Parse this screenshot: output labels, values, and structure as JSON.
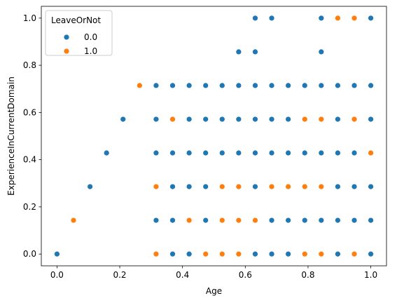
{
  "chart_data": {
    "type": "scatter",
    "title": "",
    "xlabel": "Age",
    "ylabel": "ExperienceInCurrentDomain",
    "xlim": [
      -0.05,
      1.05
    ],
    "ylim": [
      -0.05,
      1.05
    ],
    "xticks": [
      "0.0",
      "0.2",
      "0.4",
      "0.6",
      "0.8",
      "1.0"
    ],
    "yticks": [
      "0.0",
      "0.2",
      "0.4",
      "0.6",
      "0.8",
      "1.0"
    ],
    "grid": false,
    "legend": {
      "title": "LeaveOrNot",
      "placement": "top-left"
    },
    "series": [
      {
        "name": "0.0",
        "color": "#1f77b4",
        "points": [
          [
            0.0,
            0.0
          ],
          [
            0.1053,
            0.2857
          ],
          [
            0.1579,
            0.4286
          ],
          [
            0.2105,
            0.5714
          ],
          [
            0.3158,
            0.1429
          ],
          [
            0.3158,
            0.4286
          ],
          [
            0.3158,
            0.5714
          ],
          [
            0.3158,
            0.7143
          ],
          [
            0.3684,
            0.0
          ],
          [
            0.3684,
            0.1429
          ],
          [
            0.3684,
            0.2857
          ],
          [
            0.3684,
            0.4286
          ],
          [
            0.3684,
            0.7143
          ],
          [
            0.4211,
            0.0
          ],
          [
            0.4211,
            0.2857
          ],
          [
            0.4211,
            0.4286
          ],
          [
            0.4211,
            0.5714
          ],
          [
            0.4211,
            0.7143
          ],
          [
            0.4737,
            0.1429
          ],
          [
            0.4737,
            0.2857
          ],
          [
            0.4737,
            0.4286
          ],
          [
            0.4737,
            0.5714
          ],
          [
            0.4737,
            0.7143
          ],
          [
            0.5263,
            0.4286
          ],
          [
            0.5263,
            0.5714
          ],
          [
            0.5263,
            0.7143
          ],
          [
            0.5789,
            0.4286
          ],
          [
            0.5789,
            0.5714
          ],
          [
            0.5789,
            0.7143
          ],
          [
            0.5789,
            0.8571
          ],
          [
            0.6316,
            0.0
          ],
          [
            0.6316,
            0.2857
          ],
          [
            0.6316,
            0.4286
          ],
          [
            0.6316,
            0.5714
          ],
          [
            0.6316,
            0.7143
          ],
          [
            0.6316,
            0.8571
          ],
          [
            0.6316,
            1.0
          ],
          [
            0.6842,
            0.0
          ],
          [
            0.6842,
            0.1429
          ],
          [
            0.6842,
            0.4286
          ],
          [
            0.6842,
            0.5714
          ],
          [
            0.6842,
            0.7143
          ],
          [
            0.6842,
            1.0
          ],
          [
            0.7368,
            0.0
          ],
          [
            0.7368,
            0.1429
          ],
          [
            0.7368,
            0.2857
          ],
          [
            0.7368,
            0.4286
          ],
          [
            0.7368,
            0.5714
          ],
          [
            0.7368,
            0.7143
          ],
          [
            0.7895,
            0.1429
          ],
          [
            0.7895,
            0.4286
          ],
          [
            0.7895,
            0.7143
          ],
          [
            0.8421,
            0.1429
          ],
          [
            0.8421,
            0.4286
          ],
          [
            0.8421,
            0.7143
          ],
          [
            0.8421,
            0.8571
          ],
          [
            0.8421,
            1.0
          ],
          [
            0.8947,
            0.0
          ],
          [
            0.8947,
            0.1429
          ],
          [
            0.8947,
            0.2857
          ],
          [
            0.8947,
            0.4286
          ],
          [
            0.8947,
            0.5714
          ],
          [
            0.8947,
            0.7143
          ],
          [
            0.9474,
            0.1429
          ],
          [
            0.9474,
            0.2857
          ],
          [
            0.9474,
            0.4286
          ],
          [
            0.9474,
            0.7143
          ],
          [
            1.0,
            0.0
          ],
          [
            1.0,
            0.1429
          ],
          [
            1.0,
            0.2857
          ],
          [
            1.0,
            0.5714
          ],
          [
            1.0,
            0.7143
          ],
          [
            1.0,
            1.0
          ]
        ]
      },
      {
        "name": "1.0",
        "color": "#ff7f0e",
        "points": [
          [
            0.0526,
            0.1429
          ],
          [
            0.2632,
            0.7143
          ],
          [
            0.3158,
            0.0
          ],
          [
            0.3158,
            0.2857
          ],
          [
            0.3684,
            0.5714
          ],
          [
            0.4211,
            0.1429
          ],
          [
            0.4737,
            0.0
          ],
          [
            0.5263,
            0.0
          ],
          [
            0.5263,
            0.1429
          ],
          [
            0.5263,
            0.2857
          ],
          [
            0.5789,
            0.0
          ],
          [
            0.5789,
            0.1429
          ],
          [
            0.5789,
            0.2857
          ],
          [
            0.6316,
            0.1429
          ],
          [
            0.6842,
            0.2857
          ],
          [
            0.7368,
            0.2857
          ],
          [
            0.7895,
            0.0
          ],
          [
            0.7895,
            0.2857
          ],
          [
            0.7895,
            0.5714
          ],
          [
            0.8421,
            0.0
          ],
          [
            0.8421,
            0.2857
          ],
          [
            0.8421,
            0.5714
          ],
          [
            0.8947,
            1.0
          ],
          [
            0.9474,
            0.0
          ],
          [
            0.9474,
            0.5714
          ],
          [
            0.9474,
            1.0
          ],
          [
            1.0,
            0.4286
          ]
        ]
      }
    ]
  }
}
